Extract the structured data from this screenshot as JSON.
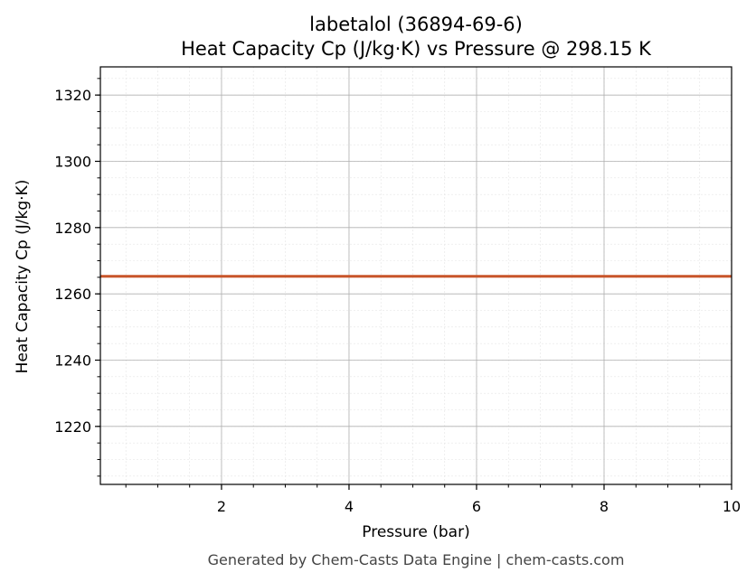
{
  "chart_data": {
    "type": "line",
    "title": "labetalol (36894-69-6)",
    "subtitle": "Heat Capacity Cp (J/kg·K) vs Pressure @ 298.15 K",
    "xlabel": "Pressure (bar)",
    "ylabel": "Heat Capacity Cp (J/kg·K)",
    "xlim": [
      0.1,
      10
    ],
    "ylim": [
      1202.5,
      1328.5
    ],
    "xticks": [
      2,
      4,
      6,
      8,
      10
    ],
    "yticks": [
      1220,
      1240,
      1260,
      1280,
      1300,
      1320
    ],
    "grid": true,
    "legend": "none",
    "series": [
      {
        "color": "#c8552a",
        "x": [
          0.1,
          10
        ],
        "y": [
          1265.3,
          1265.3
        ]
      }
    ]
  },
  "footer": "Generated by Chem-Casts Data Engine | chem-casts.com"
}
